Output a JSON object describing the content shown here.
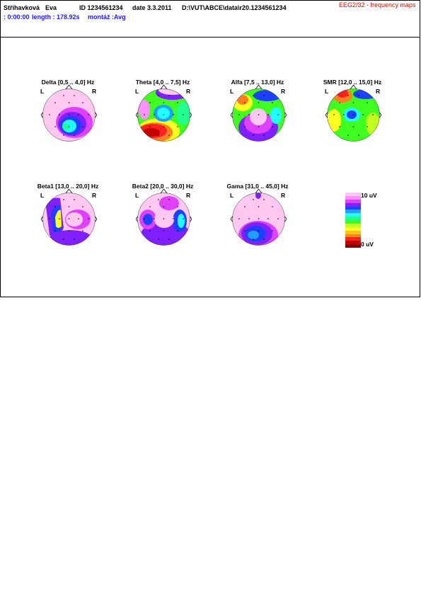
{
  "header": {
    "surname": "Stříhavková",
    "first_name": "Eva",
    "id": "ID 1234561234",
    "date": "date 3.3.2011",
    "path": "D:\\VUT\\ABCE\\data\\r20.1234561234",
    "report_title": "EEG2/32 - frequency maps",
    "time": ": 0:00:00",
    "length": "length : 178.92s",
    "montage": "montáž :Avg"
  },
  "maps": [
    {
      "title": "Delta [0,5 .. 4,0] Hz",
      "left": "L",
      "right": "R"
    },
    {
      "title": "Theta [4,0 .. 7,5] Hz",
      "left": "L",
      "right": "R"
    },
    {
      "title": "Alfa [7,5 .. 13,0] Hz",
      "left": "L",
      "right": "R"
    },
    {
      "title": "SMR [12,0 .. 15,0] Hz",
      "left": "L",
      "right": "R"
    },
    {
      "title": "Beta1 [13,0 .. 20,0] Hz",
      "left": "L",
      "right": "R"
    },
    {
      "title": "Beta2 [20,0 .. 30,0] Hz",
      "left": "L",
      "right": "R"
    },
    {
      "title": "Gama [31,0 .. 45,0] Hz",
      "left": "L",
      "right": "R"
    }
  ],
  "scale": {
    "max_label": "10 uV",
    "min_label": "0 uV",
    "colors": [
      "#ffc8f0",
      "#ff90ff",
      "#e040ff",
      "#8020ff",
      "#2040ff",
      "#20a0ff",
      "#20ffff",
      "#20ff90",
      "#40ff20",
      "#c0ff20",
      "#ffff20",
      "#ffc020",
      "#ff8020",
      "#ff2020",
      "#c00000",
      "#800000"
    ]
  }
}
